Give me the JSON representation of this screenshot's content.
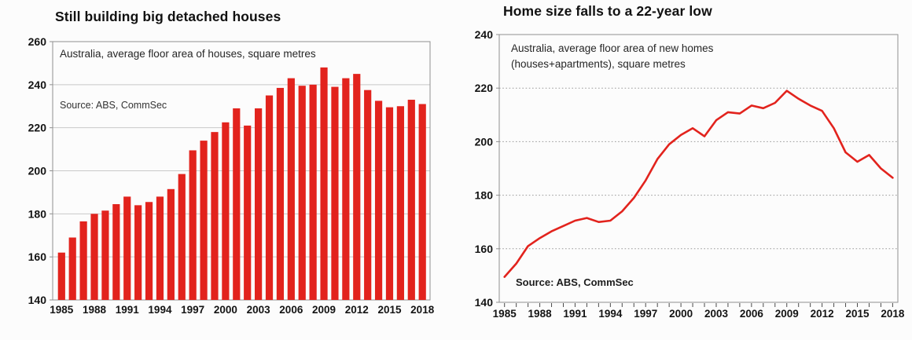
{
  "figure": {
    "background": "#fcfcfc",
    "accent_red": "#e2231d",
    "border_gray": "#909090",
    "gridline_gray_left": "#c9c9c9",
    "gridline_gray_right": "#9a9a9a"
  },
  "chart_data": [
    {
      "type": "bar",
      "title": "Still building big detached houses",
      "subtitle": "Australia, average floor area of houses, square metres",
      "source": "Source: ABS, CommSec",
      "xlabel": "",
      "ylabel": "",
      "categories": [
        1985,
        1986,
        1987,
        1988,
        1989,
        1990,
        1991,
        1992,
        1993,
        1994,
        1995,
        1996,
        1997,
        1998,
        1999,
        2000,
        2001,
        2002,
        2003,
        2004,
        2005,
        2006,
        2007,
        2008,
        2009,
        2010,
        2011,
        2012,
        2013,
        2014,
        2015,
        2016,
        2017,
        2018
      ],
      "values": [
        162,
        169,
        176.5,
        180,
        181.5,
        184.5,
        188,
        184,
        185.5,
        188,
        191.5,
        198.5,
        209.5,
        214,
        218,
        222.5,
        229,
        221,
        229,
        235,
        238.5,
        243,
        239.5,
        240,
        248,
        239,
        243,
        245,
        237.5,
        232.5,
        229.5,
        230,
        233,
        231
      ],
      "ylim": [
        140,
        260
      ],
      "y_ticks": [
        140,
        160,
        180,
        200,
        220,
        240,
        260
      ],
      "x_tick_labels": [
        "1985",
        "1988",
        "1991",
        "1994",
        "1997",
        "2000",
        "2003",
        "2006",
        "2009",
        "2012",
        "2015",
        "2018"
      ],
      "grid": "horizontal solid",
      "legend": "none",
      "bar_color": "#e2231d"
    },
    {
      "type": "line",
      "title": "Home size falls to a 22-year low",
      "subtitle_line1": "Australia, average floor area of new homes",
      "subtitle_line2": "(houses+apartments), square metres",
      "source": "Source: ABS, CommSec",
      "xlabel": "",
      "ylabel": "",
      "x": [
        1985,
        1986,
        1987,
        1988,
        1989,
        1990,
        1991,
        1992,
        1993,
        1994,
        1995,
        1996,
        1997,
        1998,
        1999,
        2000,
        2001,
        2002,
        2003,
        2004,
        2005,
        2006,
        2007,
        2008,
        2009,
        2010,
        2011,
        2012,
        2013,
        2014,
        2015,
        2016,
        2017,
        2018
      ],
      "values": [
        149.5,
        154.5,
        161,
        164,
        166.5,
        168.5,
        170.5,
        171.5,
        170,
        170.5,
        174,
        179,
        185.5,
        193.5,
        199,
        202.5,
        205,
        202,
        208,
        211,
        210.5,
        213.5,
        212.5,
        214.5,
        219,
        216,
        213.5,
        211.5,
        205,
        196,
        192.5,
        195,
        190,
        186.5
      ],
      "ylim": [
        140,
        240
      ],
      "y_ticks": [
        140,
        160,
        180,
        200,
        220,
        240
      ],
      "x_tick_labels": [
        "1985",
        "1988",
        "1991",
        "1994",
        "1997",
        "2000",
        "2003",
        "2006",
        "2009",
        "2012",
        "2015",
        "2018"
      ],
      "grid": "horizontal dotted",
      "legend": "none",
      "line_color": "#e2231d"
    }
  ]
}
